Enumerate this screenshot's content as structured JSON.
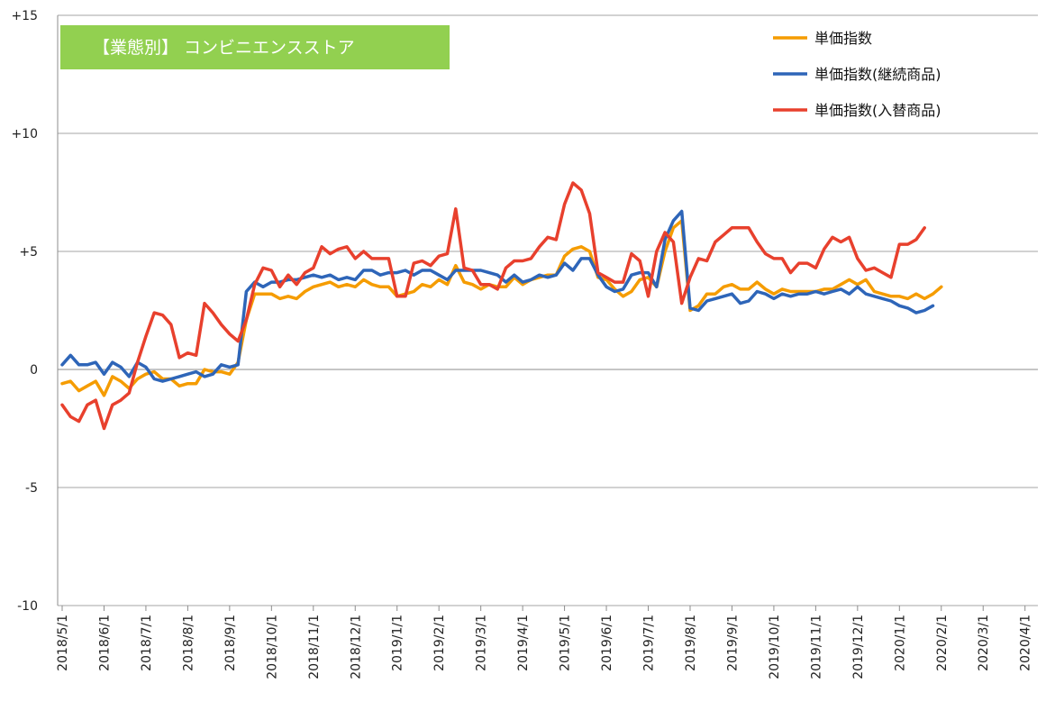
{
  "chart_data": {
    "type": "line",
    "title": "【業態別】 コンビニエンスストア",
    "xlabel": "",
    "ylabel": "",
    "ylim": [
      -10,
      15
    ],
    "ytick_labels": [
      "+15",
      "+10",
      "+5",
      "0",
      "-5",
      "-10"
    ],
    "ytick_values": [
      15,
      10,
      5,
      0,
      -5,
      -10
    ],
    "xtick_labels": [
      "2018/5/1",
      "2018/6/1",
      "2018/7/1",
      "2018/8/1",
      "2018/9/1",
      "2018/10/1",
      "2018/11/1",
      "2018/12/1",
      "2019/1/1",
      "2019/2/1",
      "2019/3/1",
      "2019/4/1",
      "2019/5/1",
      "2019/6/1",
      "2019/7/1",
      "2019/8/1",
      "2019/9/1",
      "2019/10/1",
      "2019/11/1",
      "2019/12/1",
      "2020/1/1",
      "2020/2/1",
      "2020/3/1",
      "2020/4/1"
    ],
    "x_weeks_total": 117,
    "x_range_weeks": [
      0,
      116
    ],
    "grid": "horizontal",
    "legend_position": "top-right",
    "series": [
      {
        "name": "単価指数",
        "color": "#f59c00",
        "values": [
          -0.6,
          -0.5,
          -0.9,
          -0.7,
          -0.5,
          -1.1,
          -0.3,
          -0.5,
          -0.8,
          -0.4,
          -0.2,
          -0.1,
          -0.4,
          -0.4,
          -0.7,
          -0.6,
          -0.6,
          0.0,
          -0.1,
          -0.1,
          -0.2,
          0.3,
          2.1,
          3.2,
          3.2,
          3.2,
          3.0,
          3.1,
          3.0,
          3.3,
          3.5,
          3.6,
          3.7,
          3.5,
          3.6,
          3.5,
          3.8,
          3.6,
          3.5,
          3.5,
          3.1,
          3.2,
          3.3,
          3.6,
          3.5,
          3.8,
          3.6,
          4.4,
          3.7,
          3.6,
          3.4,
          3.6,
          3.5,
          3.5,
          3.9,
          3.6,
          3.8,
          3.9,
          4.0,
          4.0,
          4.8,
          5.1,
          5.2,
          5.0,
          3.9,
          3.8,
          3.4,
          3.1,
          3.3,
          3.8,
          3.9,
          3.5,
          5.0,
          6.0,
          6.3,
          2.5,
          2.7,
          3.2,
          3.2,
          3.5,
          3.6,
          3.4,
          3.4,
          3.7,
          3.4,
          3.2,
          3.4,
          3.3,
          3.3,
          3.3,
          3.3,
          3.4,
          3.4,
          3.6,
          3.8,
          3.6,
          3.8,
          3.3,
          3.2,
          3.1,
          3.1,
          3.0,
          3.2,
          3.0,
          3.2,
          3.5
        ]
      },
      {
        "name": "単価指数(継続商品)",
        "color": "#2e65b8",
        "values": [
          0.2,
          0.6,
          0.2,
          0.2,
          0.3,
          -0.2,
          0.3,
          0.1,
          -0.3,
          0.3,
          0.1,
          -0.4,
          -0.5,
          -0.4,
          -0.3,
          -0.2,
          -0.1,
          -0.3,
          -0.2,
          0.2,
          0.1,
          0.2,
          3.3,
          3.7,
          3.5,
          3.7,
          3.7,
          3.8,
          3.8,
          3.9,
          4.0,
          3.9,
          4.0,
          3.8,
          3.9,
          3.8,
          4.2,
          4.2,
          4.0,
          4.1,
          4.1,
          4.2,
          4.0,
          4.2,
          4.2,
          4.0,
          3.8,
          4.2,
          4.2,
          4.2,
          4.2,
          4.1,
          4.0,
          3.7,
          4.0,
          3.7,
          3.8,
          4.0,
          3.9,
          4.0,
          4.5,
          4.2,
          4.7,
          4.7,
          4.0,
          3.5,
          3.3,
          3.4,
          4.0,
          4.1,
          4.1,
          3.5,
          5.5,
          6.3,
          6.7,
          2.6,
          2.5,
          2.9,
          3.0,
          3.1,
          3.2,
          2.8,
          2.9,
          3.3,
          3.2,
          3.0,
          3.2,
          3.1,
          3.2,
          3.2,
          3.3,
          3.2,
          3.3,
          3.4,
          3.2,
          3.5,
          3.2,
          3.1,
          3.0,
          2.9,
          2.7,
          2.6,
          2.4,
          2.5,
          2.7
        ]
      },
      {
        "name": "単価指数(入替商品)",
        "color": "#e8402d",
        "values": [
          -1.5,
          -2.0,
          -2.2,
          -1.5,
          -1.3,
          -2.5,
          -1.5,
          -1.3,
          -1.0,
          0.3,
          1.4,
          2.4,
          2.3,
          1.9,
          0.5,
          0.7,
          0.6,
          2.8,
          2.4,
          1.9,
          1.5,
          1.2,
          2.1,
          3.6,
          4.3,
          4.2,
          3.5,
          4.0,
          3.6,
          4.1,
          4.3,
          5.2,
          4.9,
          5.1,
          5.2,
          4.7,
          5.0,
          4.7,
          4.7,
          4.7,
          3.1,
          3.1,
          4.5,
          4.6,
          4.4,
          4.8,
          4.9,
          6.8,
          4.3,
          4.2,
          3.6,
          3.6,
          3.4,
          4.3,
          4.6,
          4.6,
          4.7,
          5.2,
          5.6,
          5.5,
          7.0,
          7.9,
          7.6,
          6.6,
          4.1,
          3.9,
          3.7,
          3.7,
          4.9,
          4.6,
          3.1,
          5.0,
          5.8,
          5.4,
          2.8,
          3.9,
          4.7,
          4.6,
          5.4,
          5.7,
          6.0,
          6.0,
          6.0,
          5.4,
          4.9,
          4.7,
          4.7,
          4.1,
          4.5,
          4.5,
          4.3,
          5.1,
          5.6,
          5.4,
          5.6,
          4.7,
          4.2,
          4.3,
          4.1,
          3.9,
          5.3,
          5.3,
          5.5,
          6.0
        ]
      }
    ]
  }
}
